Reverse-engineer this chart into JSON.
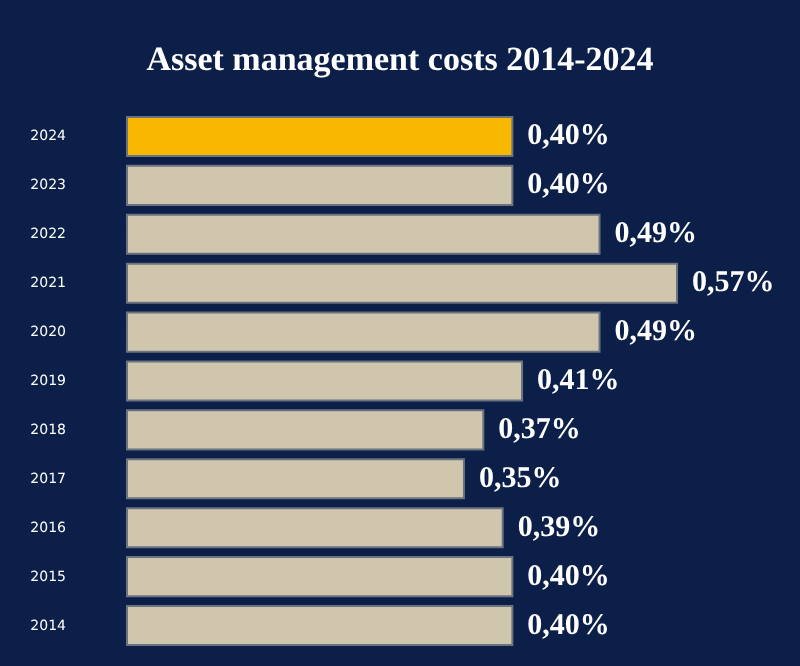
{
  "chart_data": {
    "type": "bar",
    "orientation": "horizontal",
    "title": "Asset management costs 2014-2024",
    "categories": [
      "2024",
      "2023",
      "2022",
      "2021",
      "2020",
      "2019",
      "2018",
      "2017",
      "2016",
      "2015",
      "2014"
    ],
    "values": [
      0.4,
      0.4,
      0.49,
      0.57,
      0.49,
      0.41,
      0.37,
      0.35,
      0.39,
      0.4,
      0.4
    ],
    "colors": [
      "#f9b800",
      "#cfc6ad",
      "#cfc6ad",
      "#cfc6ad",
      "#cfc6ad",
      "#cfc6ad",
      "#cfc6ad",
      "#cfc6ad",
      "#cfc6ad",
      "#cfc6ad",
      "#cfc6ad"
    ],
    "value_labels": [
      "0,40%",
      "0,40%",
      "0,49%",
      "0,57%",
      "0,49%",
      "0,41%",
      "0,37%",
      "0,35%",
      "0,39%",
      "0,40%",
      "0,40%"
    ]
  }
}
